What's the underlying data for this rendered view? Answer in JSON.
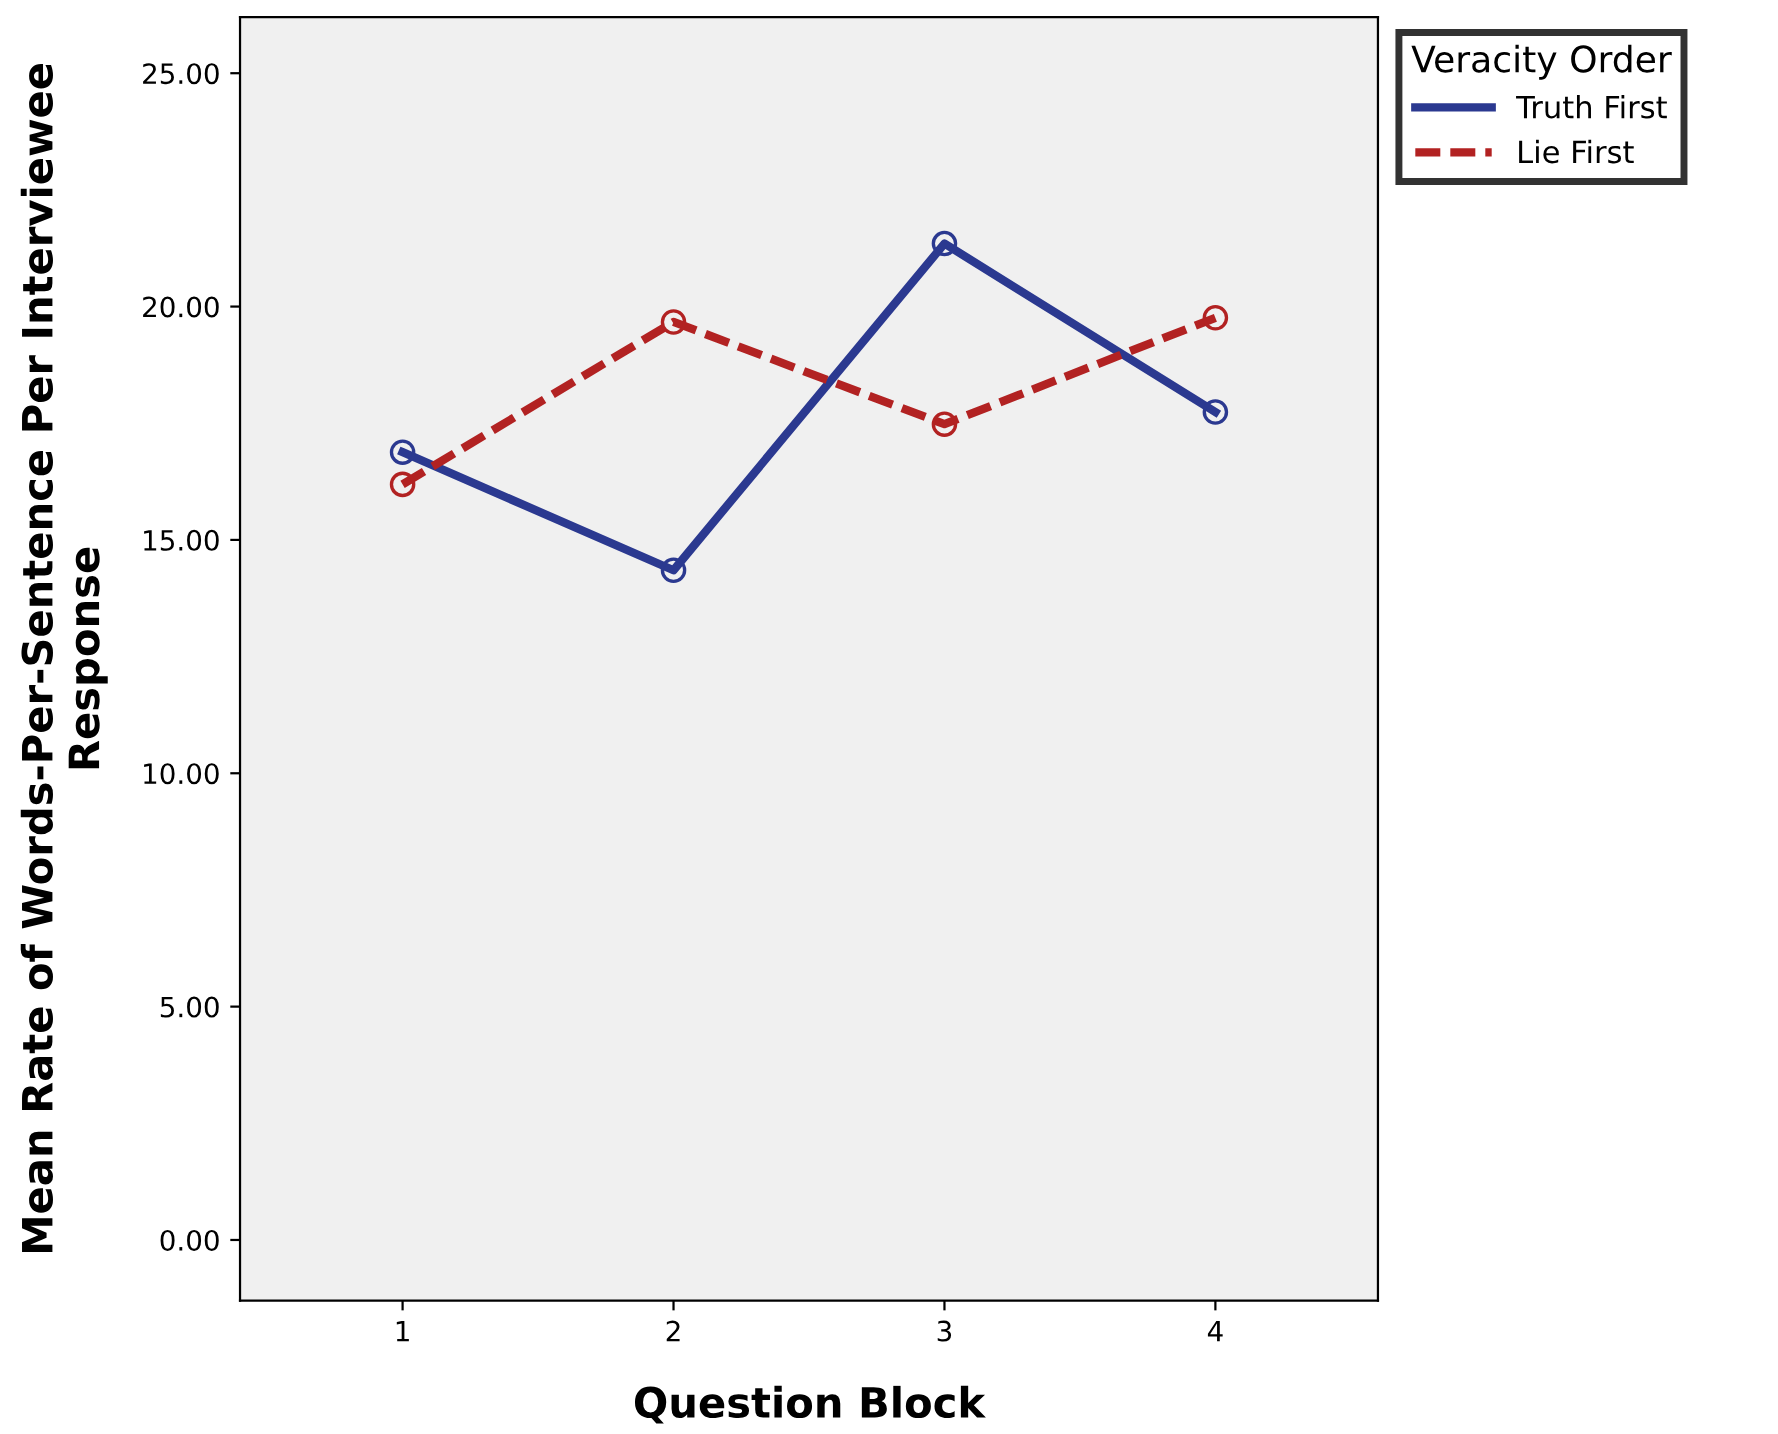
{
  "chart_data": {
    "type": "line",
    "xlabel": "Question Block",
    "ylabel": "Mean Rate of Words-Per-Sentence Per Interviewee\nResponse",
    "legend_title": "Veracity Order",
    "legend": "top right",
    "marker": "circle",
    "grid": false,
    "categories": [
      "1",
      "2",
      "3",
      "4"
    ],
    "series": [
      {
        "name": "Truth First",
        "color": "#2b3990",
        "values": [
          16.88,
          14.35,
          21.35,
          17.74
        ],
        "line_style": "solid"
      },
      {
        "name": "Lie First",
        "color": "#b22222",
        "values": [
          16.19,
          19.67,
          17.48,
          19.76
        ],
        "line_style": "dashed"
      }
    ],
    "ylim": [
      -1.3,
      26.2
    ],
    "yticks": [
      {
        "value": 0,
        "label": "0.00"
      },
      {
        "value": 5,
        "label": "5.00"
      },
      {
        "value": 10,
        "label": "10.00"
      },
      {
        "value": 15,
        "label": "15.00"
      },
      {
        "value": 20,
        "label": "20.00"
      },
      {
        "value": 25,
        "label": "25.00"
      }
    ]
  }
}
